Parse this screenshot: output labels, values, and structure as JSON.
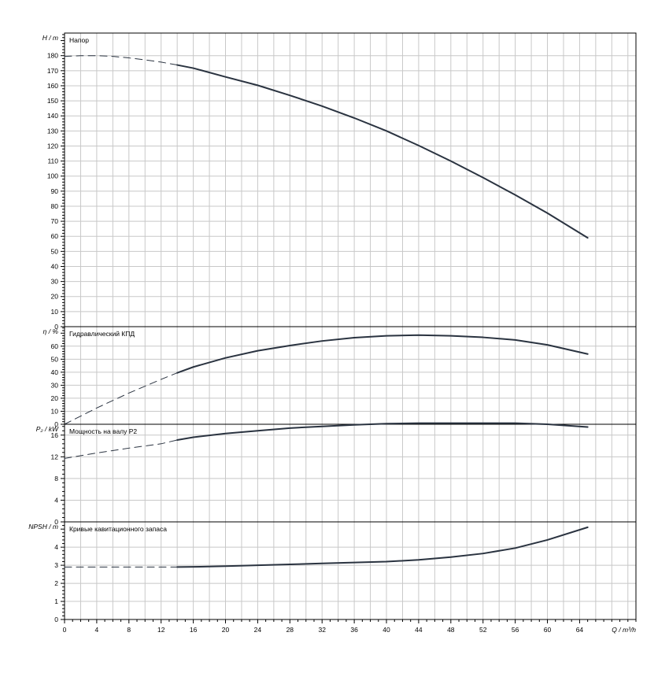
{
  "chart_data": {
    "type": "line",
    "x_axis": {
      "label": "Q / m³/h",
      "min": 0,
      "max": 71,
      "ticks": [
        0,
        4,
        8,
        12,
        16,
        20,
        24,
        28,
        32,
        36,
        40,
        44,
        48,
        52,
        56,
        60,
        64
      ],
      "minor_step": 2
    },
    "panels": [
      {
        "id": "head",
        "title": "Напор",
        "ylabel": "H / m",
        "ylim": [
          0,
          195
        ],
        "yticks": [
          0,
          10,
          20,
          30,
          40,
          50,
          60,
          70,
          80,
          90,
          100,
          110,
          120,
          130,
          140,
          150,
          160,
          170,
          180
        ],
        "series": [
          {
            "style": "dashed",
            "x": [
              0,
              2,
              4,
              6,
              8,
              10,
              12,
              14
            ],
            "y": [
              179.5,
              180.0,
              180.0,
              179.5,
              178.5,
              177.2,
              175.7,
              173.8
            ]
          },
          {
            "style": "solid",
            "x": [
              14,
              16,
              20,
              24,
              28,
              32,
              36,
              40,
              44,
              48,
              52,
              56,
              60,
              65
            ],
            "y": [
              173.8,
              171.7,
              165.9,
              160.3,
              153.6,
              146.5,
              138.6,
              130.0,
              120.3,
              110.0,
              99.0,
              87.5,
              75.4,
              59.0
            ]
          }
        ]
      },
      {
        "id": "efficiency",
        "title": "Гидравлический КПД",
        "ylabel": "η / %",
        "ylim": [
          0,
          75
        ],
        "yticks": [
          0,
          10,
          20,
          30,
          40,
          50,
          60
        ],
        "series": [
          {
            "style": "dashed",
            "x": [
              0,
              4,
              8,
              12,
              14
            ],
            "y": [
              0,
              12.5,
              24.0,
              34.5,
              39.5
            ]
          },
          {
            "style": "solid",
            "x": [
              14,
              16,
              20,
              24,
              28,
              32,
              36,
              40,
              44,
              48,
              52,
              56,
              60,
              65
            ],
            "y": [
              39.5,
              44.0,
              51.0,
              56.5,
              60.5,
              64.0,
              66.5,
              68.0,
              68.5,
              68.0,
              66.8,
              64.8,
              61.0,
              54.0
            ]
          }
        ]
      },
      {
        "id": "power",
        "title": "Мощность на валу P2",
        "ylabel": "P₂ / kW",
        "ylim": [
          0,
          18
        ],
        "yticks": [
          0,
          4,
          8,
          12,
          16
        ],
        "series": [
          {
            "style": "dashed",
            "x": [
              0,
              4,
              8,
              12,
              14
            ],
            "y": [
              11.7,
              12.7,
              13.6,
              14.4,
              15.1
            ]
          },
          {
            "style": "solid",
            "x": [
              14,
              16,
              20,
              24,
              28,
              32,
              36,
              40,
              44,
              48,
              52,
              56,
              60,
              65
            ],
            "y": [
              15.1,
              15.6,
              16.3,
              16.8,
              17.3,
              17.6,
              17.9,
              18.1,
              18.2,
              18.2,
              18.2,
              18.2,
              18.0,
              17.5
            ]
          }
        ]
      },
      {
        "id": "npsh",
        "title": "Кривые кавитационного запаса",
        "ylabel": "NPSH / m",
        "ylim": [
          0,
          5.4
        ],
        "yticks": [
          0,
          1,
          2,
          3,
          4
        ],
        "series": [
          {
            "style": "dashed",
            "x": [
              0,
              4,
              8,
              12,
              14
            ],
            "y": [
              2.9,
              2.9,
              2.9,
              2.9,
              2.9
            ]
          },
          {
            "style": "solid",
            "x": [
              14,
              16,
              20,
              24,
              28,
              32,
              36,
              40,
              44,
              48,
              52,
              56,
              60,
              65
            ],
            "y": [
              2.9,
              2.91,
              2.95,
              3.0,
              3.05,
              3.1,
              3.15,
              3.2,
              3.3,
              3.45,
              3.65,
              3.95,
              4.4,
              5.1
            ]
          }
        ]
      }
    ],
    "grid": true,
    "colors": {
      "curve": "#2a3340",
      "grid": "#c8c8c8",
      "frame": "#000000"
    }
  }
}
